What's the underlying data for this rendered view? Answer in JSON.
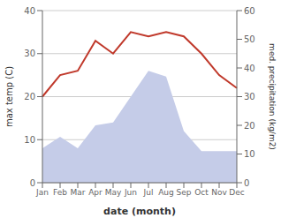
{
  "chart_data": {
    "type": "line",
    "xlabel": "date (month)",
    "ylabel": "max temp (C)",
    "y2label": "med. precipitation (kg/m2)",
    "categories": [
      "Jan",
      "Feb",
      "Mar",
      "Apr",
      "May",
      "Jun",
      "Jul",
      "Aug",
      "Sep",
      "Oct",
      "Nov",
      "Dec"
    ],
    "series": [
      {
        "type": "area",
        "axis": "y2",
        "color": "#c5cce8",
        "values": [
          12,
          16,
          12,
          20,
          21,
          30,
          39,
          37,
          18,
          11,
          11,
          11
        ]
      },
      {
        "type": "line",
        "axis": "y",
        "color": "#c0392b",
        "values": [
          20,
          25,
          26,
          33,
          30,
          35,
          34,
          35,
          34,
          30,
          25,
          22
        ]
      }
    ],
    "ylim": [
      0,
      40
    ],
    "yticks": [
      0,
      10,
      20,
      30,
      40
    ],
    "y2lim": [
      0,
      60
    ],
    "y2ticks": [
      0,
      10,
      20,
      30,
      40,
      50,
      60
    ],
    "grid": true
  }
}
